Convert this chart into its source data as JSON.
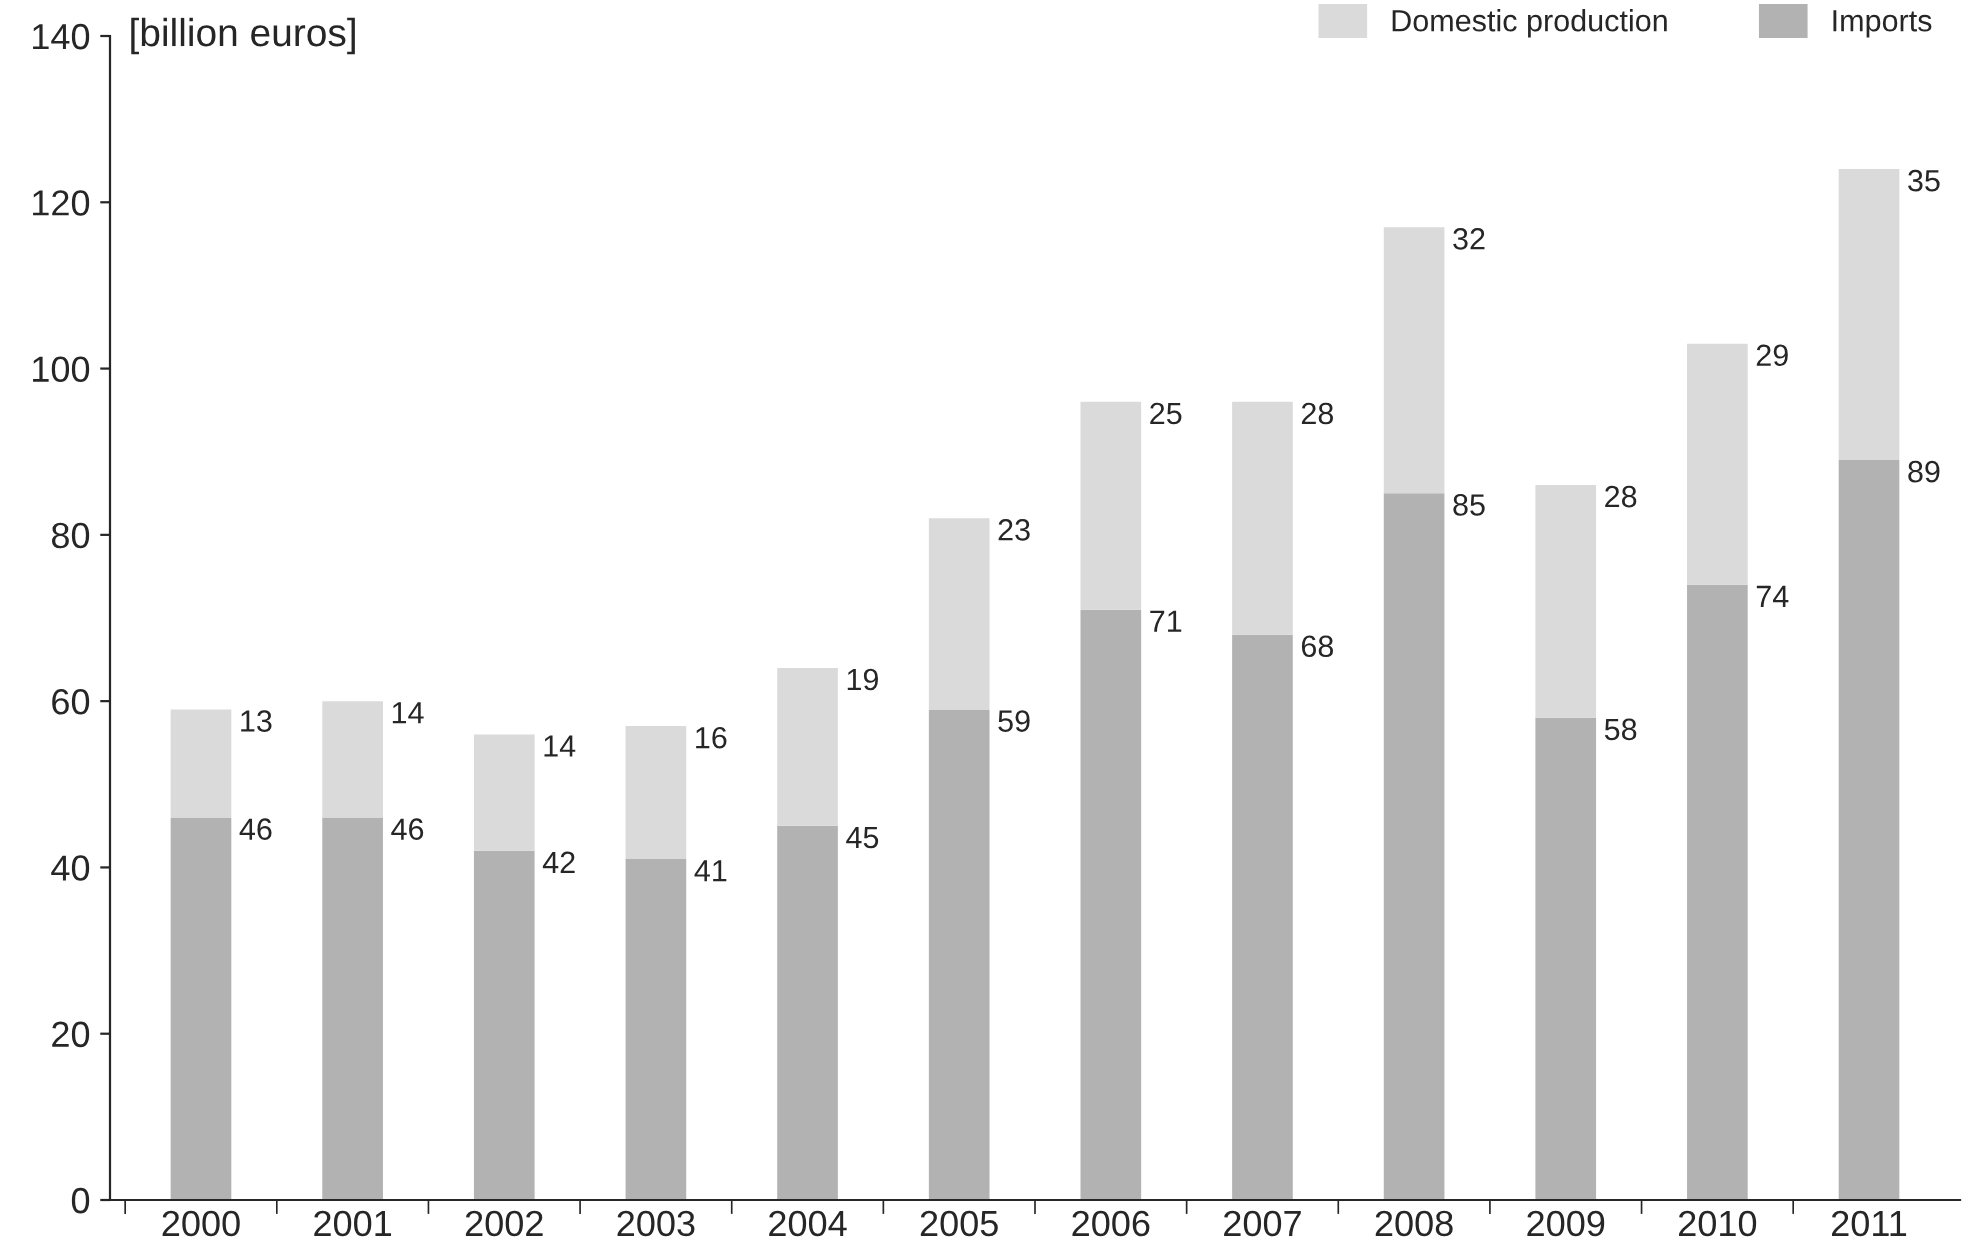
{
  "chart_data": {
    "type": "bar",
    "stacked": true,
    "ylabel": "[billion euros]",
    "categories": [
      "2000",
      "2001",
      "2002",
      "2003",
      "2004",
      "2005",
      "2006",
      "2007",
      "2008",
      "2009",
      "2010",
      "2011"
    ],
    "series": [
      {
        "name": "Imports",
        "color": "#b2b2b2",
        "values": [
          46,
          46,
          42,
          41,
          45,
          59,
          71,
          68,
          85,
          58,
          74,
          89
        ]
      },
      {
        "name": "Domestic production",
        "color": "#dadada",
        "values": [
          13,
          14,
          14,
          16,
          19,
          23,
          25,
          28,
          32,
          28,
          29,
          35
        ]
      }
    ],
    "ylim": [
      0,
      140
    ],
    "yticks": [
      0,
      20,
      40,
      60,
      80,
      100,
      120,
      140
    ],
    "data_labels": true,
    "legend": "top right",
    "grid": false
  }
}
